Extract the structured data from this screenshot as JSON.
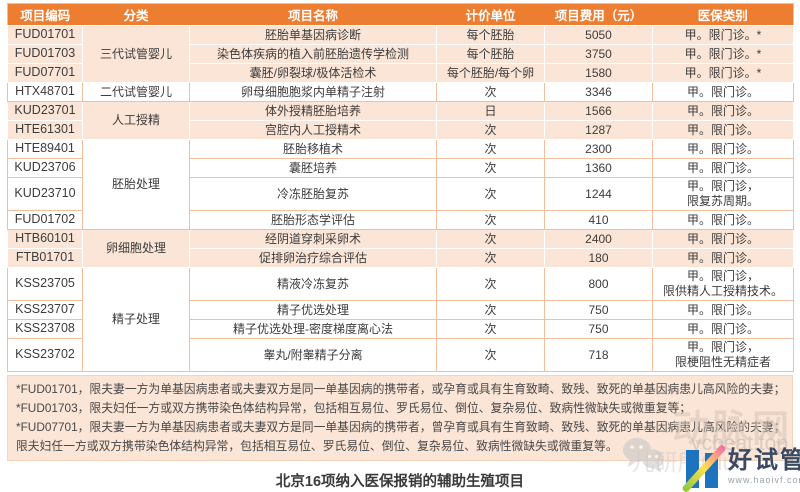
{
  "page": {
    "caption": "北京16项纳入医保报销的辅助生殖项目"
  },
  "colors": {
    "header_bg": "#ED7D31",
    "header_text": "#FFFFFF",
    "shaded_row_bg": "#FBE5D6",
    "white_row_bg": "#FFFFFF",
    "border_light": "#F2BE9B",
    "body_text": "#3C3C3C",
    "logo_blue": "#1E73BE"
  },
  "table": {
    "headers": [
      "项目编码",
      "分类",
      "项目名称",
      "计价单位",
      "项目费用（元）",
      "医保类别"
    ],
    "groups": [
      {
        "category": "三代试管婴儿",
        "shaded": true,
        "rows": [
          {
            "code": "FUD01701",
            "name": "胚胎单基因病诊断",
            "unit": "每个胚胎",
            "fee": "5050",
            "insurance": "甲。限门诊。*"
          },
          {
            "code": "FUD01703",
            "name": "染色体疾病的植入前胚胎遗传学检测",
            "unit": "每个胚胎",
            "fee": "3750",
            "insurance": "甲。限门诊。*"
          },
          {
            "code": "FUD07701",
            "name": "囊胚/卵裂球/极体活检术",
            "unit": "每个胚胎/每个卵",
            "fee": "1580",
            "insurance": "甲。限门诊。*"
          }
        ]
      },
      {
        "category": "二代试管婴儿",
        "shaded": false,
        "rows": [
          {
            "code": "HTX48701",
            "name": "卵母细胞胞浆内单精子注射",
            "unit": "次",
            "fee": "3346",
            "insurance": "甲。限门诊。"
          }
        ]
      },
      {
        "category": "人工授精",
        "shaded": true,
        "rows": [
          {
            "code": "KUD23701",
            "name": "体外授精胚胎培养",
            "unit": "日",
            "fee": "1566",
            "insurance": "甲。限门诊。"
          },
          {
            "code": "HTE61301",
            "name": "宫腔内人工授精术",
            "unit": "次",
            "fee": "1287",
            "insurance": "甲。限门诊。"
          }
        ]
      },
      {
        "category": "胚胎处理",
        "shaded": false,
        "rows": [
          {
            "code": "HTE89401",
            "name": "胚胎移植术",
            "unit": "次",
            "fee": "2300",
            "insurance": "甲。限门诊。"
          },
          {
            "code": "KUD23706",
            "name": "囊胚培养",
            "unit": "次",
            "fee": "1360",
            "insurance": "甲。限门诊。"
          },
          {
            "code": "KUD23710",
            "name": "冷冻胚胎复苏",
            "unit": "次",
            "fee": "1244",
            "insurance": "甲。限门诊，\n限复苏周期。"
          },
          {
            "code": "FUD01702",
            "name": "胚胎形态学评估",
            "unit": "次",
            "fee": "410",
            "insurance": "甲。限门诊。"
          }
        ]
      },
      {
        "category": "卵细胞处理",
        "shaded": true,
        "rows": [
          {
            "code": "HTB60101",
            "name": "经阴道穿刺采卵术",
            "unit": "次",
            "fee": "2400",
            "insurance": "甲。限门诊。"
          },
          {
            "code": "FTB01701",
            "name": "促排卵治疗综合评估",
            "unit": "次",
            "fee": "180",
            "insurance": "甲。限门诊。"
          }
        ]
      },
      {
        "category": "精子处理",
        "shaded": false,
        "rows": [
          {
            "code": "KSS23705",
            "name": "精液冷冻复苏",
            "unit": "次",
            "fee": "800",
            "insurance": "甲。限门诊，\n限供精人工授精技术。"
          },
          {
            "code": "KSS23707",
            "name": "精子优选处理",
            "unit": "次",
            "fee": "750",
            "insurance": "甲。限门诊。"
          },
          {
            "code": "KSS23708",
            "name": "精子优选处理-密度梯度离心法",
            "unit": "次",
            "fee": "750",
            "insurance": "甲。限门诊。"
          },
          {
            "code": "KSS23702",
            "name": "睾丸/附睾精子分离",
            "unit": "次",
            "fee": "718",
            "insurance": "甲。限门诊，\n限梗阻性无精症者"
          }
        ]
      }
    ],
    "footnotes": [
      "*FUD01701，限夫妻一方为单基因病患者或夫妻双方是同一单基因病的携带者，或孕育或具有生育致畸、致残、致死的单基因病患儿高风险的夫妻；",
      "*FUD01703，限夫妇任一方或双方携带染色体结构异常，包括相互易位、罗氏易位、倒位、复杂易位、致病性微缺失或微重复等；",
      "*FUD07701，限夫妻一方为单基因病患者或夫妻双方是同一单基因病的携带者，曾孕育或具有生育致畸、致残、致死的单基因病患儿高风险的夫妻；",
      "限夫妇任一方或双方携带染色体结构异常，包括相互易位、罗氏易位、倒位、复杂易位、致病性微缺失或微重复等。"
    ]
  },
  "watermarks": {
    "brand_outline": "动脉网",
    "brand_url": "vcbeat.top",
    "faint_text": "儿研所Club",
    "logo_text": "好试管",
    "logo_url": "www.haoivf.com",
    "wechat_icon": "wechat-icon"
  }
}
